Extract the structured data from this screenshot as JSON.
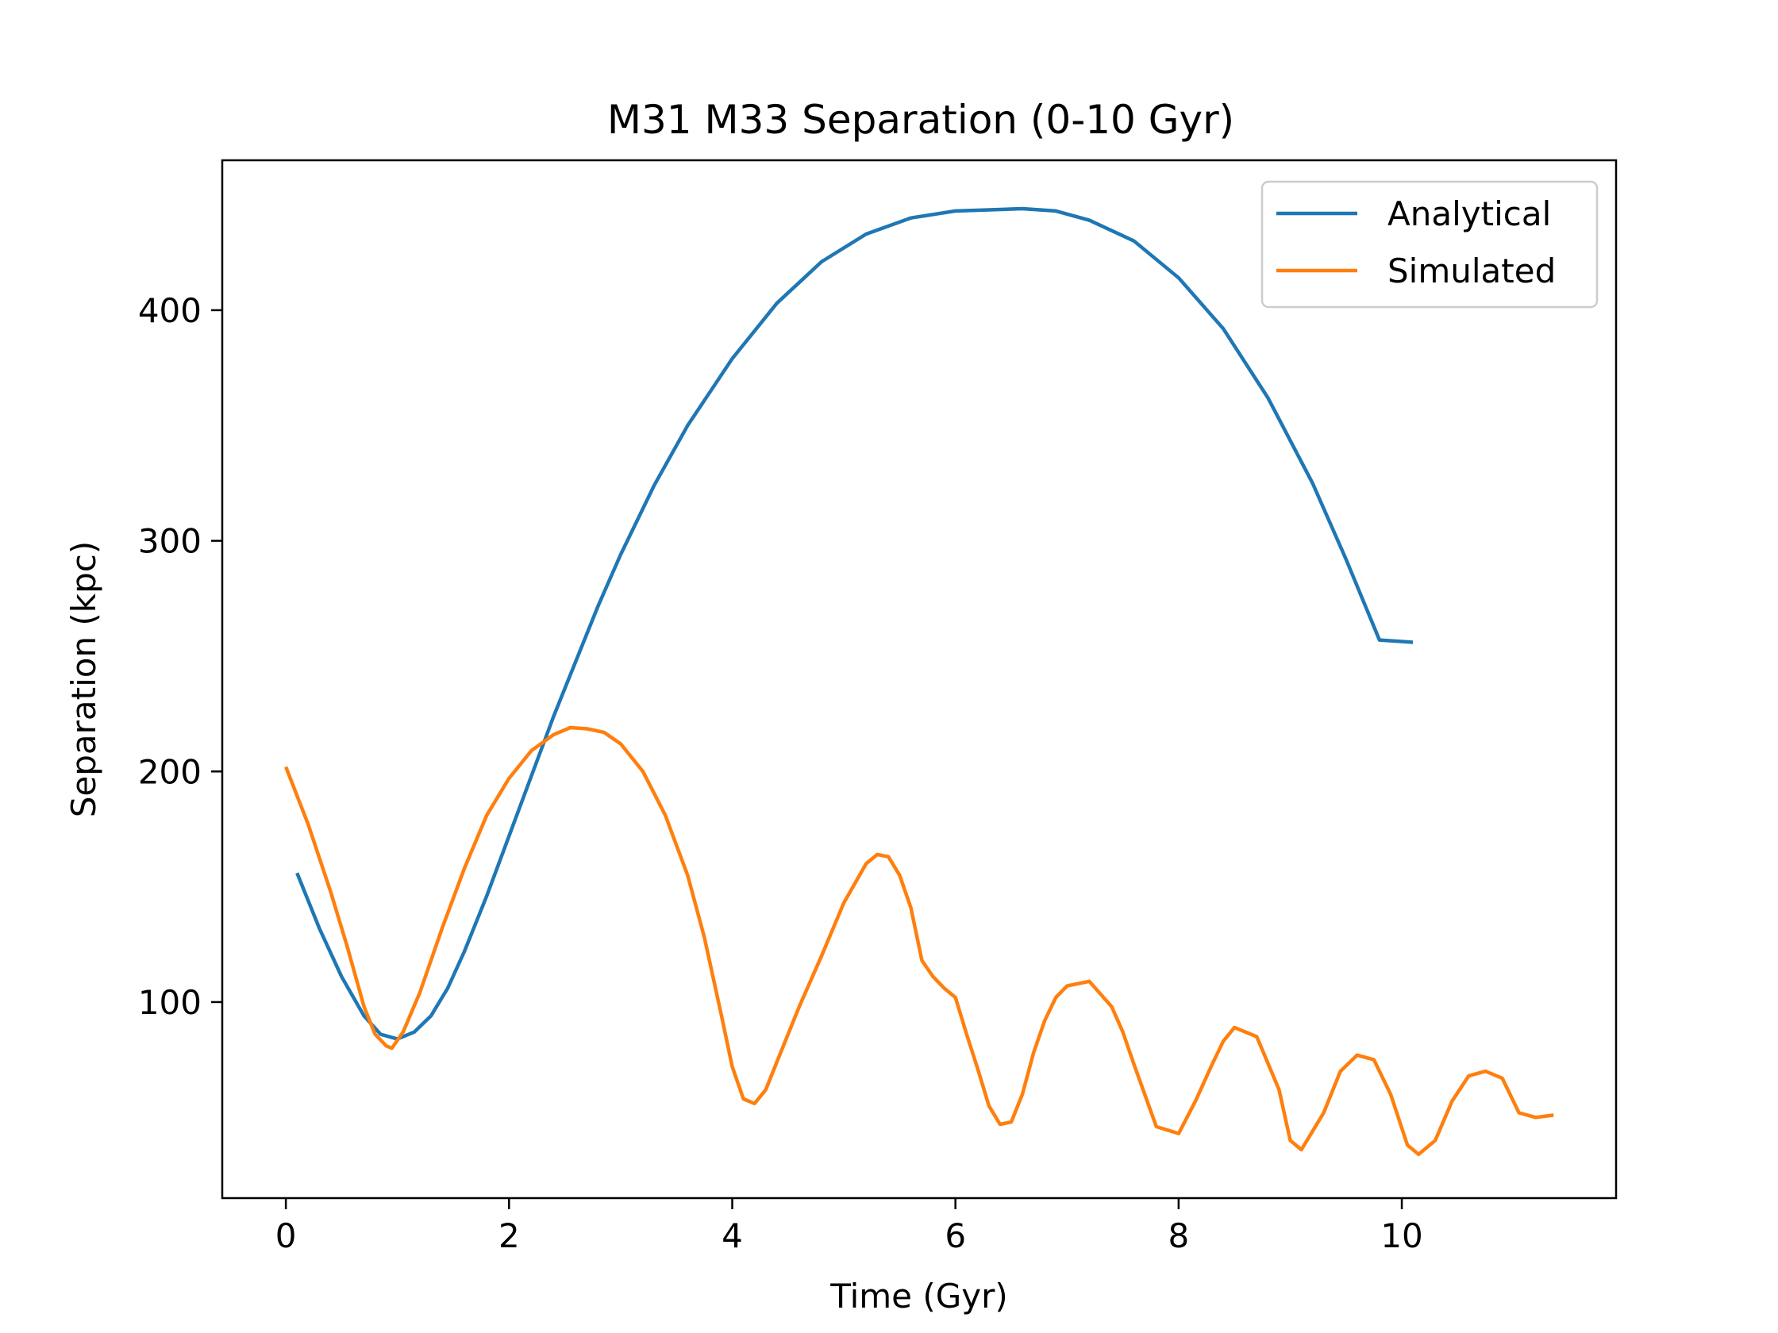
{
  "chart_data": {
    "type": "line",
    "title": "M31 M33 Separation (0-10 Gyr)",
    "xlabel": "Time (Gyr)",
    "ylabel": "Separation (kpc)",
    "xlim": [
      -0.57,
      11.92
    ],
    "ylim": [
      15,
      465
    ],
    "xticks": [
      0,
      2,
      4,
      6,
      8,
      10
    ],
    "yticks": [
      100,
      200,
      300,
      400
    ],
    "grid": false,
    "legend_position": "upper right",
    "series": [
      {
        "name": "Analytical",
        "color": "#1f77b4",
        "x": [
          0.1,
          0.3,
          0.5,
          0.7,
          0.85,
          1.0,
          1.15,
          1.3,
          1.45,
          1.6,
          1.8,
          2.0,
          2.2,
          2.4,
          2.6,
          2.8,
          3.0,
          3.3,
          3.6,
          4.0,
          4.4,
          4.8,
          5.2,
          5.6,
          6.0,
          6.3,
          6.6,
          6.9,
          7.2,
          7.6,
          8.0,
          8.4,
          8.8,
          9.2,
          9.5,
          9.8,
          10.1
        ],
        "y": [
          156,
          132,
          111,
          94,
          86,
          84,
          87,
          94,
          106,
          122,
          146,
          172,
          198,
          224,
          248,
          272,
          294,
          324,
          350,
          379,
          403,
          421,
          433,
          440,
          443,
          443.5,
          444,
          443,
          439,
          430,
          414,
          392,
          362,
          325,
          292,
          257,
          256
        ]
      },
      {
        "name": "Simulated",
        "color": "#ff7f0e",
        "x": [
          0.0,
          0.2,
          0.4,
          0.55,
          0.7,
          0.8,
          0.9,
          0.95,
          1.05,
          1.2,
          1.4,
          1.6,
          1.8,
          2.0,
          2.2,
          2.4,
          2.55,
          2.7,
          2.85,
          3.0,
          3.2,
          3.4,
          3.6,
          3.75,
          3.9,
          4.0,
          4.1,
          4.2,
          4.3,
          4.4,
          4.6,
          4.8,
          5.0,
          5.2,
          5.3,
          5.4,
          5.5,
          5.6,
          5.7,
          5.8,
          5.9,
          6.0,
          6.1,
          6.2,
          6.3,
          6.4,
          6.5,
          6.6,
          6.7,
          6.8,
          6.9,
          7.0,
          7.2,
          7.4,
          7.5,
          7.6,
          7.8,
          8.0,
          8.15,
          8.3,
          8.4,
          8.5,
          8.7,
          8.9,
          9.0,
          9.1,
          9.3,
          9.45,
          9.6,
          9.75,
          9.9,
          10.05,
          10.15,
          10.3,
          10.45,
          10.6,
          10.75,
          10.9,
          11.05,
          11.2,
          11.36
        ],
        "y": [
          202,
          177,
          148,
          124,
          98,
          86,
          81,
          80,
          87,
          104,
          132,
          158,
          181,
          197,
          209,
          216,
          219,
          218.5,
          217,
          212,
          200,
          181,
          155,
          128,
          95,
          72,
          58,
          56,
          62,
          74,
          98,
          120,
          143,
          160,
          164,
          163,
          155,
          141,
          118,
          111,
          106,
          102,
          86,
          71,
          55,
          47,
          48,
          60,
          78,
          92,
          102,
          107,
          109,
          98,
          87,
          73,
          46,
          43,
          57,
          73,
          83,
          89,
          85,
          62,
          40,
          36,
          52,
          70,
          77,
          75,
          60,
          38,
          34,
          40,
          57,
          68,
          70,
          67,
          52,
          50,
          51
        ]
      }
    ]
  }
}
